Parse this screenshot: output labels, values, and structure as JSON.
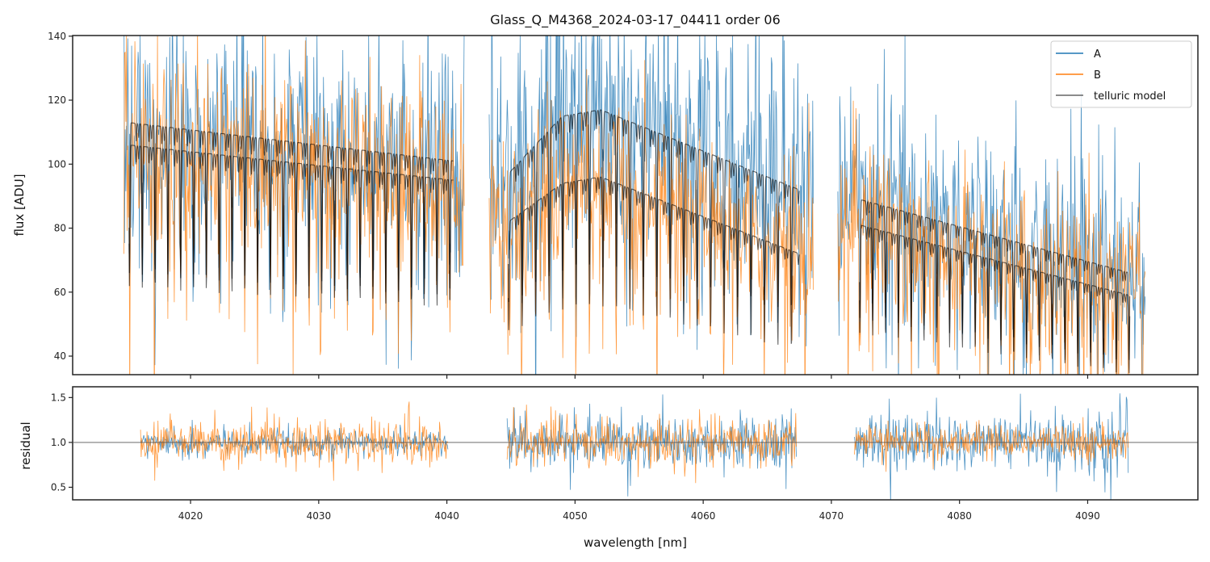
{
  "chart_data": {
    "type": "line",
    "title": "Glass_Q_M4368_2024-03-17_04411  order 06",
    "xlabel": "wavelength [nm]",
    "xlim": [
      4010.8,
      4098.6
    ],
    "x_ticks": [
      4020,
      4030,
      4040,
      4050,
      4060,
      4070,
      4080,
      4090
    ],
    "x_tick_labels": [
      "4020",
      "4030",
      "4040",
      "4050",
      "4060",
      "4070",
      "4080",
      "4090"
    ],
    "colors": {
      "A": "#1f77b4",
      "B": "#ff7f0e",
      "model": "#000000",
      "axis": "#222222",
      "hline": "#555555"
    },
    "panels": [
      {
        "name": "flux",
        "ylabel": "flux [ADU]",
        "ylim": [
          34.2,
          140.2
        ],
        "y_ticks": [
          40,
          60,
          80,
          100,
          120,
          140
        ],
        "y_tick_labels": [
          "40",
          "60",
          "80",
          "100",
          "120",
          "140"
        ],
        "segments": [
          {
            "x_range": [
              4014.8,
              4041.4
            ],
            "model_range": [
              4015.2,
              4040.5
            ],
            "A_continuum": [
              [
                4015.2,
                113
              ],
              [
                4040.5,
                101
              ]
            ],
            "B_continuum": [
              [
                4015.2,
                106
              ],
              [
                4040.5,
                95
              ]
            ],
            "line_spacing_nm": 1.0,
            "noise_A": 22,
            "noise_B": 20
          },
          {
            "x_range": [
              4043.3,
              4068.6
            ],
            "model_range": [
              4044.8,
              4067.5
            ],
            "A_continuum": [
              [
                4044.8,
                97
              ],
              [
                4049.0,
                115
              ],
              [
                4052.0,
                117
              ],
              [
                4067.5,
                92
              ]
            ],
            "B_continuum": [
              [
                4044.8,
                82
              ],
              [
                4049.0,
                94
              ],
              [
                4052.0,
                96
              ],
              [
                4067.5,
                72
              ]
            ],
            "line_spacing_nm": 1.05,
            "noise_A": 26,
            "noise_B": 18
          },
          {
            "x_range": [
              4070.5,
              4094.5
            ],
            "model_range": [
              4072.2,
              4093.3
            ],
            "A_continuum": [
              [
                4072.2,
                89
              ],
              [
                4093.3,
                66
              ]
            ],
            "B_continuum": [
              [
                4072.2,
                81
              ],
              [
                4093.3,
                59
              ]
            ],
            "line_spacing_nm": 1.0,
            "noise_A": 20,
            "noise_B": 18
          }
        ]
      },
      {
        "name": "residual",
        "ylabel": "residual",
        "ylim": [
          0.36,
          1.62
        ],
        "y_ticks": [
          0.5,
          1.0,
          1.5
        ],
        "y_tick_labels": [
          "0.5",
          "1.0",
          "1.5"
        ],
        "reference_line": 1.0,
        "segments": [
          {
            "x_range": [
              4016.1,
              4040.1
            ],
            "noise_A": 0.13,
            "noise_B": 0.22
          },
          {
            "x_range": [
              4044.7,
              4067.3
            ],
            "noise_A": 0.26,
            "noise_B": 0.24
          },
          {
            "x_range": [
              4071.8,
              4093.2
            ],
            "noise_A": 0.32,
            "noise_B": 0.17
          }
        ]
      }
    ],
    "legend": {
      "position": "top-right",
      "entries": [
        {
          "label": "A",
          "series": "A"
        },
        {
          "label": "B",
          "series": "B"
        },
        {
          "label": "telluric model",
          "series": "model"
        }
      ]
    }
  }
}
